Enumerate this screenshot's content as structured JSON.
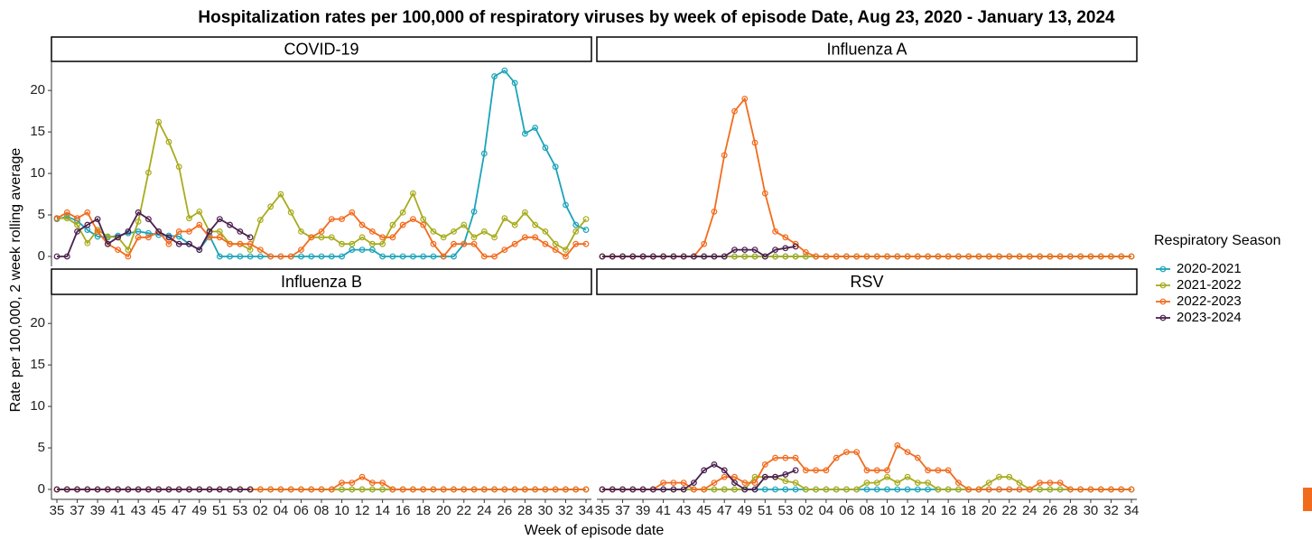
{
  "chart_data": {
    "type": "line",
    "title": "Hospitalization rates per 100,000 of respiratory viruses by week of episode Date, Aug 23, 2020 - January 13, 2024",
    "x_label": "Week of episode date",
    "y_label": "Rate per 100,000, 2 week rolling average",
    "legend_title": "Respiratory Season",
    "categories": [
      "35",
      null,
      "37",
      null,
      "39",
      null,
      "41",
      null,
      "43",
      null,
      "45",
      null,
      "47",
      null,
      "49",
      null,
      "51",
      null,
      "53",
      null,
      "02",
      null,
      "04",
      null,
      "06",
      null,
      "08",
      null,
      "10",
      null,
      "12",
      null,
      "14",
      null,
      "16",
      null,
      "18",
      null,
      "20",
      null,
      "22",
      null,
      "24",
      null,
      "26",
      null,
      "28",
      null,
      "30",
      null,
      "32",
      null,
      "34"
    ],
    "ylim": [
      -1.2,
      23.5
    ],
    "yticks": [
      0,
      5,
      10,
      15,
      20
    ],
    "markers": true,
    "series": [
      {
        "name": "2020-2021",
        "color": "#1ba3b8"
      },
      {
        "name": "2021-2022",
        "color": "#a8ab1c"
      },
      {
        "name": "2022-2023",
        "color": "#f26b1d"
      },
      {
        "name": "2023-2024",
        "color": "#4b1f4e"
      }
    ],
    "panels": [
      {
        "title": "COVID-19",
        "values": [
          [
            4.5,
            4.8,
            4.3,
            3.2,
            2.4,
            2.3,
            2.5,
            2.8,
            3.0,
            2.8,
            2.6,
            2.5,
            2.4,
            1.5,
            0.8,
            2.5,
            0,
            0,
            0,
            0,
            0,
            0,
            0,
            0,
            0,
            0,
            0,
            0,
            0,
            0.8,
            0.8,
            0.8,
            0,
            0,
            0,
            0,
            0,
            0,
            0,
            0,
            1.5,
            5.4,
            12.4,
            21.7,
            22.4,
            20.9,
            14.8,
            15.5,
            13.1,
            10.8,
            6.2,
            3.8,
            3.2
          ],
          [
            4.6,
            4.6,
            3.8,
            1.6,
            3.2,
            2.4,
            2.3,
            0.8,
            4.2,
            10.1,
            16.2,
            13.8,
            10.8,
            4.6,
            5.4,
            3.0,
            3.0,
            1.5,
            1.5,
            0.8,
            4.4,
            6.0,
            7.5,
            5.3,
            3.0,
            2.3,
            2.3,
            2.3,
            1.5,
            1.5,
            2.3,
            1.5,
            1.5,
            3.8,
            5.3,
            7.6,
            4.5,
            3.0,
            2.3,
            3.0,
            3.8,
            2.3,
            3.0,
            2.3,
            4.6,
            3.8,
            5.3,
            3.8,
            3.0,
            1.5,
            0.8,
            3.0,
            4.5
          ],
          [
            4.6,
            5.3,
            4.6,
            5.3,
            3.0,
            1.5,
            0.8,
            0,
            2.3,
            2.3,
            3.0,
            1.5,
            3.0,
            3.0,
            3.8,
            2.3,
            2.3,
            1.5,
            1.5,
            1.5,
            0.8,
            0,
            0,
            0,
            0.8,
            2.3,
            3.0,
            4.5,
            4.5,
            5.3,
            3.8,
            3.0,
            2.3,
            2.3,
            3.8,
            4.5,
            3.8,
            1.5,
            0,
            1.5,
            1.5,
            1.5,
            0,
            0,
            0.8,
            1.5,
            2.3,
            2.3,
            1.5,
            0.8,
            0,
            1.5,
            1.5
          ],
          [
            0,
            0,
            3.0,
            3.8,
            4.5,
            1.5,
            2.3,
            3.0,
            5.3,
            4.5,
            3.0,
            2.3,
            1.5,
            1.5,
            0.8,
            3.0,
            4.5,
            3.8,
            3.0,
            2.3,
            null,
            null,
            null,
            null,
            null,
            null,
            null,
            null,
            null,
            null,
            null,
            null,
            null,
            null,
            null,
            null,
            null,
            null,
            null,
            null,
            null,
            null,
            null,
            null,
            null,
            null,
            null,
            null,
            null,
            null,
            null,
            null,
            null
          ]
        ]
      },
      {
        "title": "Influenza A",
        "values": [
          [
            0,
            0,
            0,
            0,
            0,
            0,
            0,
            0,
            0,
            0,
            0,
            0,
            0,
            0,
            0,
            0,
            0,
            0,
            0,
            0,
            0,
            0,
            0,
            0,
            0,
            0,
            0,
            0,
            0,
            0,
            0,
            0,
            0,
            0,
            0,
            0,
            0,
            0,
            0,
            0,
            0,
            0,
            0,
            0,
            0,
            0,
            0,
            0,
            0,
            0,
            0,
            0,
            0
          ],
          [
            0,
            0,
            0,
            0,
            0,
            0,
            0,
            0,
            0,
            0,
            0,
            0,
            0,
            0,
            0,
            0,
            0,
            0,
            0,
            0,
            0,
            0,
            0,
            0,
            0,
            0,
            0,
            0,
            0,
            0,
            0,
            0,
            0,
            0,
            0,
            0,
            0,
            0,
            0,
            0,
            0,
            0,
            0,
            0,
            0,
            0,
            0,
            0,
            0,
            0,
            0,
            0,
            0
          ],
          [
            0,
            0,
            0,
            0,
            0,
            0,
            0,
            0,
            0,
            0,
            1.5,
            5.4,
            12.2,
            17.5,
            19.0,
            13.7,
            7.6,
            3.0,
            2.3,
            1.5,
            0.5,
            0,
            0,
            0,
            0,
            0,
            0,
            0,
            0,
            0,
            0,
            0,
            0,
            0,
            0,
            0,
            0,
            0,
            0,
            0,
            0,
            0,
            0,
            0,
            0,
            0,
            0,
            0,
            0,
            0,
            0,
            0,
            0
          ],
          [
            0,
            0,
            0,
            0,
            0,
            0,
            0,
            0,
            0,
            0,
            0,
            0,
            0,
            0.8,
            0.8,
            0.8,
            0,
            0.8,
            1.0,
            1.2,
            null,
            null,
            null,
            null,
            null,
            null,
            null,
            null,
            null,
            null,
            null,
            null,
            null,
            null,
            null,
            null,
            null,
            null,
            null,
            null,
            null,
            null,
            null,
            null,
            null,
            null,
            null,
            null,
            null,
            null,
            null,
            null,
            null
          ]
        ]
      },
      {
        "title": "Influenza B",
        "values": [
          [
            0,
            0,
            0,
            0,
            0,
            0,
            0,
            0,
            0,
            0,
            0,
            0,
            0,
            0,
            0,
            0,
            0,
            0,
            0,
            0,
            0,
            0,
            0,
            0,
            0,
            0,
            0,
            0,
            0,
            0,
            0,
            0,
            0,
            0,
            0,
            0,
            0,
            0,
            0,
            0,
            0,
            0,
            0,
            0,
            0,
            0,
            0,
            0,
            0,
            0,
            0,
            0,
            0
          ],
          [
            0,
            0,
            0,
            0,
            0,
            0,
            0,
            0,
            0,
            0,
            0,
            0,
            0,
            0,
            0,
            0,
            0,
            0,
            0,
            0,
            0,
            0,
            0,
            0,
            0,
            0,
            0,
            0,
            0,
            0,
            0,
            0,
            0,
            0,
            0,
            0,
            0,
            0,
            0,
            0,
            0,
            0,
            0,
            0,
            0,
            0,
            0,
            0,
            0,
            0,
            0,
            0,
            0
          ],
          [
            0,
            0,
            0,
            0,
            0,
            0,
            0,
            0,
            0,
            0,
            0,
            0,
            0,
            0,
            0,
            0,
            0,
            0,
            0,
            0,
            0,
            0,
            0,
            0,
            0,
            0,
            0,
            0,
            0.8,
            0.8,
            1.5,
            0.8,
            0.8,
            0,
            0,
            0,
            0,
            0,
            0,
            0,
            0,
            0,
            0,
            0,
            0,
            0,
            0,
            0,
            0,
            0,
            0,
            0,
            0
          ],
          [
            0,
            0,
            0,
            0,
            0,
            0,
            0,
            0,
            0,
            0,
            0,
            0,
            0,
            0,
            0,
            0,
            0,
            0,
            0,
            0,
            null,
            null,
            null,
            null,
            null,
            null,
            null,
            null,
            null,
            null,
            null,
            null,
            null,
            null,
            null,
            null,
            null,
            null,
            null,
            null,
            null,
            null,
            null,
            null,
            null,
            null,
            null,
            null,
            null,
            null,
            null,
            null,
            null
          ]
        ]
      },
      {
        "title": "RSV",
        "values": [
          [
            0,
            0,
            0,
            0,
            0,
            0,
            0,
            0,
            0,
            0,
            0,
            0,
            0,
            0,
            0,
            0,
            0,
            0,
            0,
            0,
            0,
            0,
            0,
            0,
            0,
            0,
            0,
            0,
            0,
            0,
            0,
            0,
            0,
            0,
            0,
            0,
            0,
            0,
            0,
            0,
            0,
            0,
            0,
            0,
            0,
            0,
            0,
            0,
            0,
            0,
            0,
            0,
            0
          ],
          [
            0,
            0,
            0,
            0,
            0,
            0,
            0,
            0,
            0,
            0,
            0,
            0,
            0,
            0,
            0,
            1.5,
            1.5,
            1.5,
            1.0,
            0.8,
            0,
            0,
            0,
            0,
            0,
            0,
            0.8,
            0.8,
            1.5,
            0.8,
            1.5,
            0.8,
            0.8,
            0,
            0,
            0,
            0,
            0,
            0.8,
            1.5,
            1.5,
            0.8,
            0,
            0,
            0,
            0,
            0,
            0,
            0,
            0,
            0,
            0,
            0
          ],
          [
            0,
            0,
            0,
            0,
            0,
            0,
            0.8,
            0.8,
            0.8,
            0,
            0,
            0.8,
            1.5,
            1.5,
            0.8,
            0.8,
            3.0,
            3.8,
            3.8,
            3.8,
            2.3,
            2.3,
            2.3,
            3.8,
            4.5,
            4.5,
            2.3,
            2.3,
            2.3,
            5.3,
            4.5,
            3.8,
            2.3,
            2.3,
            2.3,
            0.8,
            0,
            0,
            0,
            0,
            0,
            0,
            0,
            0.8,
            0.8,
            0.8,
            0,
            0,
            0,
            0,
            0,
            0,
            0
          ],
          [
            0,
            0,
            0,
            0,
            0,
            0,
            0,
            0,
            0,
            0.8,
            2.3,
            3.0,
            2.3,
            0.8,
            0,
            0,
            1.5,
            1.5,
            1.8,
            2.3,
            null,
            null,
            null,
            null,
            null,
            null,
            null,
            null,
            null,
            null,
            null,
            null,
            null,
            null,
            null,
            null,
            null,
            null,
            null,
            null,
            null,
            null,
            null,
            null,
            null,
            null,
            null,
            null,
            null,
            null,
            null,
            null,
            null
          ]
        ]
      }
    ]
  }
}
